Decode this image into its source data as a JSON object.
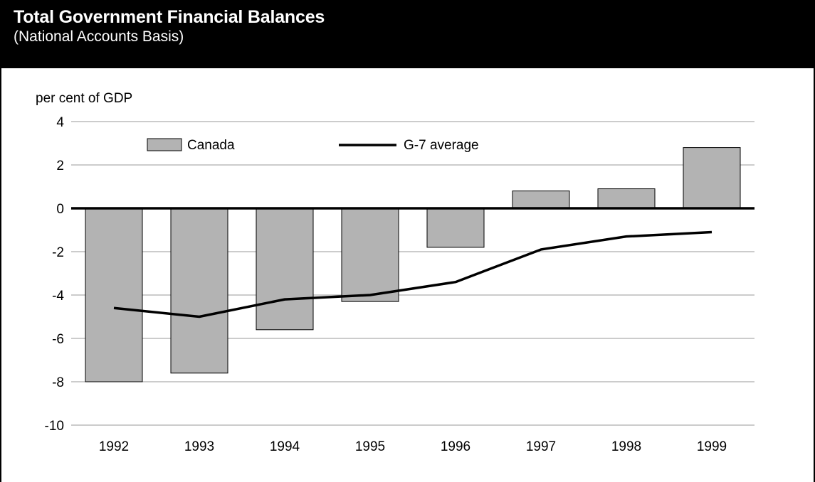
{
  "header": {
    "title": "Total Government Financial Balances",
    "subtitle": "(National Accounts Basis)"
  },
  "colors": {
    "header_bg": "#000000",
    "bar_fill": "#b3b3b3",
    "line": "#000000",
    "grid": "#999999"
  },
  "chart_data": {
    "type": "bar",
    "title": "Total Government Financial Balances",
    "subtitle": "(National Accounts Basis)",
    "ylabel": "per cent of GDP",
    "xlabel": "",
    "ylim": [
      -10,
      4
    ],
    "yticks": [
      4,
      2,
      0,
      -2,
      -4,
      -6,
      -8,
      -10
    ],
    "grid": true,
    "legend_position": "top-left",
    "categories": [
      "1992",
      "1993",
      "1994",
      "1995",
      "1996",
      "1997",
      "1998",
      "1999"
    ],
    "series": [
      {
        "name": "Canada",
        "kind": "bar",
        "values": [
          -8.0,
          -7.6,
          -5.6,
          -4.3,
          -1.8,
          0.8,
          0.9,
          2.8
        ]
      },
      {
        "name": "G-7 average",
        "kind": "line",
        "values": [
          -4.6,
          -5.0,
          -4.2,
          -4.0,
          -3.4,
          -1.9,
          -1.3,
          -1.1
        ]
      }
    ]
  }
}
